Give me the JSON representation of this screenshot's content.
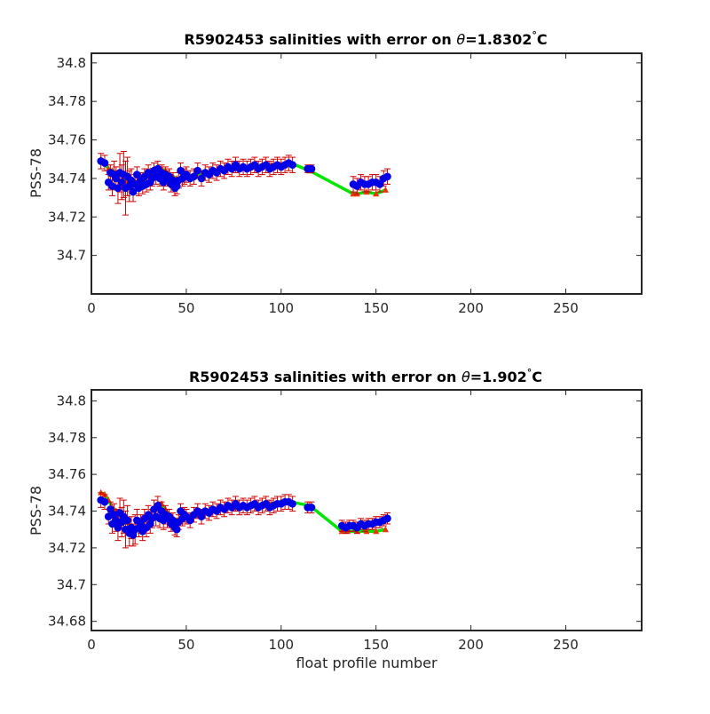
{
  "chart_data": [
    {
      "type": "scatter",
      "title_prefix": "R5902453 salinities with error on ",
      "title_theta": "θ",
      "title_value": "=1.8302",
      "title_degree": "°",
      "title_unit": "C",
      "xlabel": "",
      "ylabel": "PSS-78",
      "xlim": [
        0,
        290
      ],
      "ylim": [
        34.68,
        34.805
      ],
      "xticks": [
        "0",
        "50",
        "100",
        "150",
        "200",
        "250"
      ],
      "yticks": [
        "34.7",
        "34.72",
        "34.74",
        "34.76",
        "34.78",
        "34.8"
      ],
      "grid": false,
      "series": [
        {
          "role": "mapped",
          "color": "#00e600",
          "x": [
            5,
            7,
            9,
            11,
            13,
            15,
            17,
            19,
            21,
            23,
            25,
            27,
            29,
            31,
            33,
            35,
            37,
            39,
            41,
            43,
            45,
            47,
            50,
            55,
            60,
            65,
            70,
            75,
            80,
            85,
            90,
            95,
            100,
            105,
            115,
            138,
            140,
            145,
            150,
            155
          ],
          "y": [
            34.75,
            34.748,
            34.745,
            34.744,
            34.743,
            34.742,
            34.741,
            34.738,
            34.737,
            34.738,
            34.739,
            34.741,
            34.742,
            34.744,
            34.745,
            34.746,
            34.745,
            34.744,
            34.742,
            34.741,
            34.74,
            34.74,
            34.741,
            34.742,
            34.743,
            34.744,
            34.745,
            34.746,
            34.746,
            34.746,
            34.747,
            34.747,
            34.747,
            34.748,
            34.744,
            34.732,
            34.732,
            34.733,
            34.732,
            34.734
          ]
        },
        {
          "role": "float",
          "color": "#0000e6",
          "err_color": "#cc0000",
          "x": [
            5,
            7,
            9,
            10,
            11,
            12,
            13,
            14,
            15,
            16,
            17,
            18,
            19,
            20,
            21,
            22,
            23,
            24,
            25,
            26,
            27,
            28,
            29,
            30,
            31,
            32,
            33,
            34,
            35,
            36,
            37,
            38,
            39,
            40,
            41,
            42,
            43,
            44,
            45,
            46,
            47,
            48,
            49,
            50,
            52,
            54,
            56,
            58,
            60,
            62,
            64,
            66,
            68,
            70,
            72,
            74,
            76,
            78,
            80,
            82,
            84,
            86,
            88,
            90,
            92,
            94,
            96,
            98,
            100,
            102,
            104,
            106,
            114,
            116,
            138,
            140,
            142,
            144,
            146,
            148,
            150,
            152,
            154,
            156
          ],
          "y": [
            34.749,
            34.748,
            34.738,
            34.743,
            34.736,
            34.742,
            34.74,
            34.735,
            34.743,
            34.738,
            34.742,
            34.735,
            34.741,
            34.736,
            34.739,
            34.733,
            34.737,
            34.742,
            34.735,
            34.739,
            34.736,
            34.741,
            34.737,
            34.743,
            34.738,
            34.74,
            34.744,
            34.741,
            34.745,
            34.74,
            34.743,
            34.738,
            34.742,
            34.74,
            34.741,
            34.737,
            34.739,
            34.735,
            34.736,
            34.739,
            34.744,
            34.74,
            34.741,
            34.742,
            34.74,
            34.741,
            34.744,
            34.74,
            34.743,
            34.742,
            34.744,
            34.743,
            34.745,
            34.744,
            34.746,
            34.745,
            34.747,
            34.745,
            34.746,
            34.745,
            34.746,
            34.747,
            34.745,
            34.746,
            34.747,
            34.745,
            34.746,
            34.747,
            34.746,
            34.747,
            34.748,
            34.747,
            34.745,
            34.745,
            34.737,
            34.736,
            34.738,
            34.737,
            34.737,
            34.738,
            34.738,
            34.737,
            34.74,
            34.741
          ],
          "err": [
            0.004,
            0.004,
            0.004,
            0.004,
            0.005,
            0.007,
            0.006,
            0.008,
            0.01,
            0.009,
            0.012,
            0.014,
            0.01,
            0.008,
            0.006,
            0.005,
            0.005,
            0.004,
            0.004,
            0.004,
            0.004,
            0.004,
            0.004,
            0.004,
            0.004,
            0.004,
            0.004,
            0.004,
            0.004,
            0.004,
            0.004,
            0.004,
            0.004,
            0.004,
            0.004,
            0.004,
            0.004,
            0.004,
            0.004,
            0.004,
            0.004,
            0.004,
            0.004,
            0.004,
            0.004,
            0.004,
            0.004,
            0.004,
            0.004,
            0.004,
            0.004,
            0.004,
            0.004,
            0.004,
            0.004,
            0.004,
            0.004,
            0.004,
            0.004,
            0.004,
            0.004,
            0.004,
            0.004,
            0.004,
            0.004,
            0.004,
            0.004,
            0.004,
            0.004,
            0.004,
            0.004,
            0.004,
            0.002,
            0.002,
            0.004,
            0.004,
            0.004,
            0.004,
            0.004,
            0.004,
            0.004,
            0.004,
            0.004,
            0.004
          ]
        }
      ]
    },
    {
      "type": "scatter",
      "title_prefix": "R5902453 salinities with error on ",
      "title_theta": "θ",
      "title_value": "=1.902",
      "title_degree": "°",
      "title_unit": "C",
      "xlabel": "float profile number",
      "ylabel": "PSS-78",
      "xlim": [
        0,
        290
      ],
      "ylim": [
        34.675,
        34.806
      ],
      "xticks": [
        "0",
        "50",
        "100",
        "150",
        "200",
        "250"
      ],
      "yticks": [
        "34.68",
        "34.7",
        "34.72",
        "34.74",
        "34.76",
        "34.78",
        "34.8"
      ],
      "grid": false,
      "series": [
        {
          "role": "mapped",
          "color": "#00e600",
          "x": [
            5,
            7,
            9,
            11,
            13,
            15,
            17,
            19,
            21,
            23,
            25,
            27,
            29,
            31,
            33,
            35,
            37,
            39,
            41,
            43,
            45,
            47,
            50,
            55,
            60,
            65,
            70,
            75,
            80,
            85,
            90,
            95,
            100,
            105,
            115,
            132,
            135,
            140,
            145,
            150,
            155
          ],
          "y": [
            34.75,
            34.749,
            34.746,
            34.742,
            34.74,
            34.738,
            34.737,
            34.734,
            34.731,
            34.73,
            34.731,
            34.733,
            34.736,
            34.739,
            34.741,
            34.744,
            34.744,
            34.741,
            34.738,
            34.736,
            34.735,
            34.736,
            34.737,
            34.738,
            34.739,
            34.74,
            34.741,
            34.742,
            34.743,
            34.743,
            34.744,
            34.744,
            34.745,
            34.745,
            34.743,
            34.729,
            34.729,
            34.729,
            34.729,
            34.729,
            34.73
          ]
        },
        {
          "role": "float",
          "color": "#0000e6",
          "err_color": "#cc0000",
          "x": [
            5,
            7,
            9,
            10,
            11,
            12,
            13,
            14,
            15,
            16,
            17,
            18,
            19,
            20,
            21,
            22,
            23,
            24,
            25,
            26,
            27,
            28,
            29,
            30,
            31,
            32,
            33,
            34,
            35,
            36,
            37,
            38,
            39,
            40,
            41,
            42,
            43,
            44,
            45,
            46,
            47,
            48,
            49,
            50,
            52,
            54,
            56,
            58,
            60,
            62,
            64,
            66,
            68,
            70,
            72,
            74,
            76,
            78,
            80,
            82,
            84,
            86,
            88,
            90,
            92,
            94,
            96,
            98,
            100,
            102,
            104,
            106,
            114,
            116,
            132,
            134,
            136,
            138,
            140,
            142,
            144,
            146,
            148,
            150,
            152,
            154,
            156
          ],
          "y": [
            34.746,
            34.745,
            34.737,
            34.741,
            34.733,
            34.738,
            34.735,
            34.731,
            34.739,
            34.734,
            34.737,
            34.73,
            34.735,
            34.728,
            34.731,
            34.727,
            34.73,
            34.735,
            34.731,
            34.733,
            34.729,
            34.736,
            34.731,
            34.738,
            34.733,
            34.736,
            34.741,
            34.737,
            34.743,
            34.736,
            34.74,
            34.735,
            34.738,
            34.736,
            34.737,
            34.733,
            34.735,
            34.731,
            34.73,
            34.734,
            34.74,
            34.736,
            34.738,
            34.737,
            34.735,
            34.738,
            34.74,
            34.737,
            34.74,
            34.739,
            34.741,
            34.74,
            34.742,
            34.741,
            34.743,
            34.742,
            34.744,
            34.742,
            34.743,
            34.742,
            34.743,
            34.744,
            34.742,
            34.743,
            34.744,
            34.742,
            34.743,
            34.744,
            34.744,
            34.745,
            34.745,
            34.744,
            34.742,
            34.742,
            34.732,
            34.731,
            34.732,
            34.732,
            34.731,
            34.733,
            34.732,
            34.733,
            34.733,
            34.734,
            34.734,
            34.735,
            34.736
          ],
          "err": [
            0.004,
            0.004,
            0.004,
            0.004,
            0.005,
            0.006,
            0.006,
            0.007,
            0.008,
            0.008,
            0.009,
            0.01,
            0.008,
            0.007,
            0.006,
            0.006,
            0.008,
            0.006,
            0.005,
            0.005,
            0.005,
            0.005,
            0.005,
            0.005,
            0.005,
            0.005,
            0.005,
            0.005,
            0.005,
            0.005,
            0.005,
            0.005,
            0.005,
            0.005,
            0.004,
            0.004,
            0.004,
            0.004,
            0.004,
            0.004,
            0.004,
            0.004,
            0.004,
            0.004,
            0.004,
            0.004,
            0.004,
            0.004,
            0.004,
            0.004,
            0.004,
            0.004,
            0.004,
            0.004,
            0.004,
            0.004,
            0.004,
            0.004,
            0.004,
            0.004,
            0.004,
            0.004,
            0.004,
            0.004,
            0.004,
            0.004,
            0.004,
            0.004,
            0.004,
            0.004,
            0.004,
            0.004,
            0.003,
            0.003,
            0.003,
            0.003,
            0.003,
            0.003,
            0.003,
            0.003,
            0.003,
            0.003,
            0.003,
            0.003,
            0.003,
            0.003,
            0.003
          ]
        }
      ]
    }
  ]
}
